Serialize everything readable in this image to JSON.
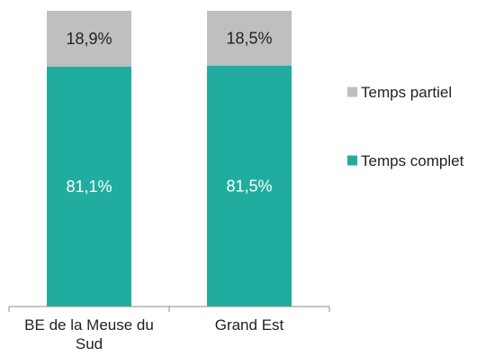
{
  "chart_data": {
    "type": "bar",
    "stacked": true,
    "percent": true,
    "categories": [
      "BE de la Meuse du Sud",
      "Grand Est"
    ],
    "series": [
      {
        "name": "Temps complet",
        "values": [
          81.1,
          81.5
        ],
        "labels": [
          "81,1%",
          "81,5%"
        ],
        "color": "#20ADA0",
        "label_color": "#ffffff"
      },
      {
        "name": "Temps partiel",
        "values": [
          18.9,
          18.5
        ],
        "labels": [
          "18,9%",
          "18,5%"
        ],
        "color": "#BFBFBF",
        "label_color": "#222222"
      }
    ],
    "ylim": [
      0,
      100
    ],
    "grid": false,
    "legend": "right",
    "legend_order": [
      "Temps partiel",
      "Temps complet"
    ]
  }
}
